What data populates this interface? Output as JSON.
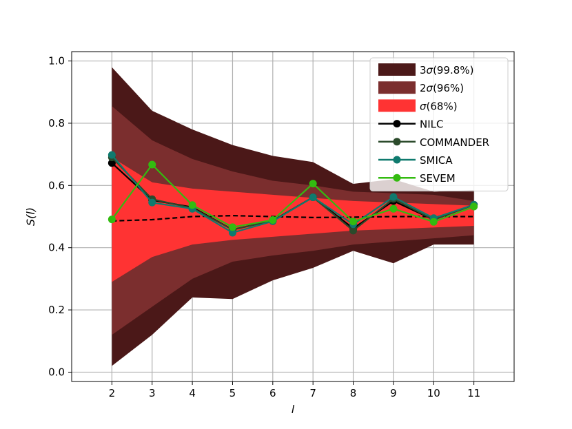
{
  "chart_data": {
    "type": "line",
    "xlabel": "l",
    "ylabel": "S(l)",
    "x": [
      2,
      3,
      4,
      5,
      6,
      7,
      8,
      9,
      10,
      11
    ],
    "xlim": [
      1,
      12
    ],
    "ylim": [
      -0.03,
      1.03
    ],
    "yticks": [
      "0.0",
      "0.2",
      "0.4",
      "0.6",
      "0.8",
      "1.0"
    ],
    "xticks": [
      "2",
      "3",
      "4",
      "5",
      "6",
      "7",
      "8",
      "9",
      "10",
      "11"
    ],
    "grid": true,
    "legend_position": "top-right",
    "mean": [
      0.486,
      0.49,
      0.5,
      0.503,
      0.5,
      0.497,
      0.498,
      0.5,
      0.5,
      0.5
    ],
    "bands": [
      {
        "name": "3σ(99.8%)",
        "label_main": "3",
        "label_sigma": "σ",
        "label_rest": "(99.8%)",
        "color": "#4b1818",
        "upper": [
          0.98,
          0.84,
          0.78,
          0.73,
          0.695,
          0.675,
          0.605,
          0.62,
          0.58,
          0.585
        ],
        "lower": [
          0.02,
          0.12,
          0.24,
          0.235,
          0.295,
          0.335,
          0.39,
          0.35,
          0.41,
          0.41
        ]
      },
      {
        "name": "2σ(96%)",
        "label_main": "2",
        "label_sigma": "σ",
        "label_rest": "(96%)",
        "color": "#7b2e2e",
        "upper": [
          0.855,
          0.745,
          0.685,
          0.645,
          0.615,
          0.6,
          0.58,
          0.575,
          0.57,
          0.55
        ],
        "lower": [
          0.12,
          0.21,
          0.3,
          0.355,
          0.375,
          0.39,
          0.41,
          0.42,
          0.43,
          0.44
        ]
      },
      {
        "name": "σ(68%)",
        "label_main": "",
        "label_sigma": "σ",
        "label_rest": "(68%)",
        "color": "#ff3333",
        "upper": [
          0.69,
          0.61,
          0.59,
          0.58,
          0.57,
          0.56,
          0.55,
          0.545,
          0.54,
          0.535
        ],
        "lower": [
          0.29,
          0.37,
          0.41,
          0.425,
          0.435,
          0.445,
          0.455,
          0.46,
          0.465,
          0.47
        ]
      }
    ],
    "series": [
      {
        "name": "NILC",
        "color": "#000000",
        "values": [
          0.672,
          0.553,
          0.53,
          0.458,
          0.487,
          0.562,
          0.462,
          0.55,
          0.49,
          0.538
        ]
      },
      {
        "name": "COMMANDER",
        "color": "#2b4a2b",
        "values": [
          0.69,
          0.556,
          0.527,
          0.458,
          0.487,
          0.562,
          0.455,
          0.557,
          0.49,
          0.538
        ]
      },
      {
        "name": "SMICA",
        "color": "#0f7a6e",
        "values": [
          0.698,
          0.545,
          0.525,
          0.448,
          0.485,
          0.562,
          0.475,
          0.563,
          0.495,
          0.538
        ]
      },
      {
        "name": "SEVEM",
        "color": "#33bb10",
        "values": [
          0.491,
          0.667,
          0.537,
          0.466,
          0.489,
          0.606,
          0.484,
          0.525,
          0.483,
          0.532
        ]
      }
    ]
  }
}
